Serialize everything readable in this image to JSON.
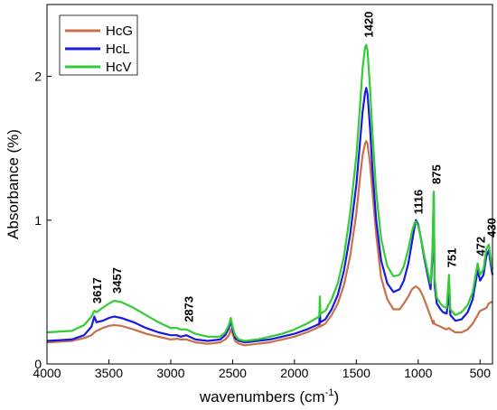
{
  "chart_data": {
    "type": "line",
    "xlabel": "wavenumbers (cm",
    "xlabel_sup": "-1",
    "xlabel_close": ")",
    "ylabel": "Absorbance (%)",
    "xlim": [
      4000,
      400
    ],
    "x_reversed": true,
    "ylim": [
      0,
      2.5
    ],
    "x_ticks": [
      4000,
      3500,
      3000,
      2500,
      2000,
      1500,
      1000,
      500
    ],
    "x_tick_labels": [
      "4000",
      "3500",
      "3000",
      "2500",
      "2000",
      "1500",
      "1000",
      "500"
    ],
    "y_ticks": [
      0,
      1,
      2
    ],
    "y_tick_labels": [
      "0",
      "1",
      "2"
    ],
    "grid": false,
    "legend_position": "top-left",
    "series": [
      {
        "name": "HcG",
        "color": "#c8704a",
        "points": [
          [
            4000,
            0.15
          ],
          [
            3800,
            0.16
          ],
          [
            3700,
            0.18
          ],
          [
            3640,
            0.2
          ],
          [
            3617,
            0.22
          ],
          [
            3600,
            0.23
          ],
          [
            3550,
            0.25
          ],
          [
            3500,
            0.265
          ],
          [
            3457,
            0.27
          ],
          [
            3400,
            0.265
          ],
          [
            3300,
            0.24
          ],
          [
            3200,
            0.21
          ],
          [
            3100,
            0.19
          ],
          [
            3000,
            0.17
          ],
          [
            2950,
            0.175
          ],
          [
            2920,
            0.17
          ],
          [
            2873,
            0.17
          ],
          [
            2800,
            0.15
          ],
          [
            2700,
            0.14
          ],
          [
            2600,
            0.15
          ],
          [
            2560,
            0.17
          ],
          [
            2530,
            0.2
          ],
          [
            2515,
            0.24
          ],
          [
            2500,
            0.21
          ],
          [
            2480,
            0.16
          ],
          [
            2450,
            0.14
          ],
          [
            2400,
            0.13
          ],
          [
            2300,
            0.14
          ],
          [
            2200,
            0.15
          ],
          [
            2100,
            0.17
          ],
          [
            2000,
            0.19
          ],
          [
            1900,
            0.22
          ],
          [
            1820,
            0.25
          ],
          [
            1800,
            0.26
          ],
          [
            1795,
            0.3
          ],
          [
            1790,
            0.26
          ],
          [
            1750,
            0.28
          ],
          [
            1700,
            0.34
          ],
          [
            1650,
            0.42
          ],
          [
            1600,
            0.55
          ],
          [
            1550,
            0.75
          ],
          [
            1500,
            1.05
          ],
          [
            1470,
            1.3
          ],
          [
            1450,
            1.45
          ],
          [
            1430,
            1.53
          ],
          [
            1420,
            1.55
          ],
          [
            1410,
            1.53
          ],
          [
            1390,
            1.4
          ],
          [
            1370,
            1.2
          ],
          [
            1340,
            0.9
          ],
          [
            1300,
            0.6
          ],
          [
            1250,
            0.45
          ],
          [
            1200,
            0.38
          ],
          [
            1150,
            0.38
          ],
          [
            1116,
            0.42
          ],
          [
            1080,
            0.47
          ],
          [
            1050,
            0.52
          ],
          [
            1020,
            0.54
          ],
          [
            990,
            0.52
          ],
          [
            960,
            0.47
          ],
          [
            930,
            0.4
          ],
          [
            900,
            0.33
          ],
          [
            880,
            0.28
          ],
          [
            875,
            0.3
          ],
          [
            870,
            0.28
          ],
          [
            850,
            0.27
          ],
          [
            820,
            0.26
          ],
          [
            800,
            0.25
          ],
          [
            770,
            0.24
          ],
          [
            751,
            0.25
          ],
          [
            740,
            0.24
          ],
          [
            700,
            0.22
          ],
          [
            650,
            0.22
          ],
          [
            600,
            0.24
          ],
          [
            560,
            0.28
          ],
          [
            520,
            0.34
          ],
          [
            500,
            0.37
          ],
          [
            472,
            0.38
          ],
          [
            450,
            0.39
          ],
          [
            430,
            0.42
          ],
          [
            410,
            0.43
          ],
          [
            400,
            0.43
          ]
        ]
      },
      {
        "name": "HcL",
        "color": "#1a1adc",
        "points": [
          [
            4000,
            0.16
          ],
          [
            3800,
            0.17
          ],
          [
            3700,
            0.2
          ],
          [
            3640,
            0.26
          ],
          [
            3617,
            0.33
          ],
          [
            3600,
            0.29
          ],
          [
            3550,
            0.3
          ],
          [
            3500,
            0.32
          ],
          [
            3457,
            0.33
          ],
          [
            3400,
            0.32
          ],
          [
            3300,
            0.29
          ],
          [
            3200,
            0.25
          ],
          [
            3100,
            0.22
          ],
          [
            3000,
            0.2
          ],
          [
            2950,
            0.2
          ],
          [
            2920,
            0.19
          ],
          [
            2873,
            0.2
          ],
          [
            2800,
            0.17
          ],
          [
            2700,
            0.16
          ],
          [
            2600,
            0.17
          ],
          [
            2560,
            0.2
          ],
          [
            2530,
            0.25
          ],
          [
            2515,
            0.3
          ],
          [
            2500,
            0.24
          ],
          [
            2480,
            0.18
          ],
          [
            2450,
            0.16
          ],
          [
            2400,
            0.15
          ],
          [
            2300,
            0.16
          ],
          [
            2200,
            0.17
          ],
          [
            2100,
            0.19
          ],
          [
            2000,
            0.21
          ],
          [
            1900,
            0.24
          ],
          [
            1820,
            0.27
          ],
          [
            1800,
            0.28
          ],
          [
            1795,
            0.36
          ],
          [
            1790,
            0.29
          ],
          [
            1750,
            0.31
          ],
          [
            1700,
            0.38
          ],
          [
            1650,
            0.48
          ],
          [
            1600,
            0.65
          ],
          [
            1550,
            0.9
          ],
          [
            1500,
            1.25
          ],
          [
            1470,
            1.55
          ],
          [
            1450,
            1.75
          ],
          [
            1430,
            1.88
          ],
          [
            1420,
            1.92
          ],
          [
            1410,
            1.88
          ],
          [
            1390,
            1.65
          ],
          [
            1370,
            1.35
          ],
          [
            1340,
            1.0
          ],
          [
            1300,
            0.72
          ],
          [
            1250,
            0.56
          ],
          [
            1200,
            0.5
          ],
          [
            1150,
            0.52
          ],
          [
            1116,
            0.58
          ],
          [
            1080,
            0.7
          ],
          [
            1050,
            0.85
          ],
          [
            1030,
            0.95
          ],
          [
            1020,
            1.0
          ],
          [
            1000,
            0.97
          ],
          [
            980,
            0.88
          ],
          [
            950,
            0.73
          ],
          [
            920,
            0.6
          ],
          [
            900,
            0.52
          ],
          [
            885,
            0.75
          ],
          [
            875,
            1.19
          ],
          [
            868,
            0.55
          ],
          [
            850,
            0.42
          ],
          [
            820,
            0.38
          ],
          [
            800,
            0.36
          ],
          [
            770,
            0.35
          ],
          [
            751,
            0.5
          ],
          [
            740,
            0.34
          ],
          [
            700,
            0.3
          ],
          [
            650,
            0.31
          ],
          [
            600,
            0.36
          ],
          [
            560,
            0.45
          ],
          [
            540,
            0.55
          ],
          [
            520,
            0.65
          ],
          [
            500,
            0.58
          ],
          [
            472,
            0.62
          ],
          [
            450,
            0.75
          ],
          [
            430,
            0.79
          ],
          [
            415,
            0.7
          ],
          [
            400,
            0.62
          ]
        ]
      },
      {
        "name": "HcV",
        "color": "#33cc33",
        "points": [
          [
            4000,
            0.22
          ],
          [
            3800,
            0.23
          ],
          [
            3700,
            0.27
          ],
          [
            3640,
            0.33
          ],
          [
            3617,
            0.37
          ],
          [
            3600,
            0.36
          ],
          [
            3550,
            0.39
          ],
          [
            3500,
            0.42
          ],
          [
            3457,
            0.44
          ],
          [
            3400,
            0.43
          ],
          [
            3300,
            0.39
          ],
          [
            3200,
            0.34
          ],
          [
            3100,
            0.29
          ],
          [
            3000,
            0.25
          ],
          [
            2950,
            0.25
          ],
          [
            2920,
            0.24
          ],
          [
            2873,
            0.24
          ],
          [
            2800,
            0.21
          ],
          [
            2700,
            0.19
          ],
          [
            2600,
            0.19
          ],
          [
            2560,
            0.22
          ],
          [
            2530,
            0.27
          ],
          [
            2515,
            0.32
          ],
          [
            2500,
            0.26
          ],
          [
            2480,
            0.2
          ],
          [
            2450,
            0.17
          ],
          [
            2400,
            0.16
          ],
          [
            2300,
            0.17
          ],
          [
            2200,
            0.19
          ],
          [
            2100,
            0.21
          ],
          [
            2000,
            0.24
          ],
          [
            1900,
            0.28
          ],
          [
            1820,
            0.32
          ],
          [
            1800,
            0.33
          ],
          [
            1795,
            0.47
          ],
          [
            1790,
            0.35
          ],
          [
            1750,
            0.37
          ],
          [
            1700,
            0.45
          ],
          [
            1650,
            0.56
          ],
          [
            1600,
            0.75
          ],
          [
            1550,
            1.05
          ],
          [
            1500,
            1.45
          ],
          [
            1470,
            1.8
          ],
          [
            1450,
            2.05
          ],
          [
            1430,
            2.2
          ],
          [
            1420,
            2.22
          ],
          [
            1410,
            2.18
          ],
          [
            1390,
            1.93
          ],
          [
            1370,
            1.6
          ],
          [
            1340,
            1.2
          ],
          [
            1300,
            0.87
          ],
          [
            1250,
            0.68
          ],
          [
            1200,
            0.61
          ],
          [
            1150,
            0.62
          ],
          [
            1116,
            0.68
          ],
          [
            1080,
            0.8
          ],
          [
            1050,
            0.92
          ],
          [
            1030,
            0.98
          ],
          [
            1020,
            0.99
          ],
          [
            1000,
            0.96
          ],
          [
            980,
            0.88
          ],
          [
            950,
            0.75
          ],
          [
            920,
            0.63
          ],
          [
            900,
            0.56
          ],
          [
            885,
            0.8
          ],
          [
            875,
            1.2
          ],
          [
            868,
            0.6
          ],
          [
            850,
            0.46
          ],
          [
            820,
            0.42
          ],
          [
            800,
            0.4
          ],
          [
            770,
            0.39
          ],
          [
            751,
            0.62
          ],
          [
            740,
            0.38
          ],
          [
            700,
            0.34
          ],
          [
            650,
            0.36
          ],
          [
            600,
            0.41
          ],
          [
            560,
            0.5
          ],
          [
            540,
            0.6
          ],
          [
            520,
            0.7
          ],
          [
            500,
            0.62
          ],
          [
            472,
            0.66
          ],
          [
            450,
            0.8
          ],
          [
            430,
            0.83
          ],
          [
            415,
            0.74
          ],
          [
            400,
            0.66
          ]
        ]
      }
    ],
    "annotations": [
      {
        "text": "3617",
        "x": 3617,
        "y": 0.37
      },
      {
        "text": "3457",
        "x": 3457,
        "y": 0.44
      },
      {
        "text": "2873",
        "x": 2873,
        "y": 0.24
      },
      {
        "text": "1420",
        "x": 1420,
        "y": 2.22
      },
      {
        "text": "1116",
        "x": 1020,
        "y": 0.99
      },
      {
        "text": "875",
        "x": 875,
        "y": 1.2
      },
      {
        "text": "751",
        "x": 751,
        "y": 0.62
      },
      {
        "text": "472",
        "x": 515,
        "y": 0.7
      },
      {
        "text": "430",
        "x": 430,
        "y": 0.83
      }
    ]
  }
}
